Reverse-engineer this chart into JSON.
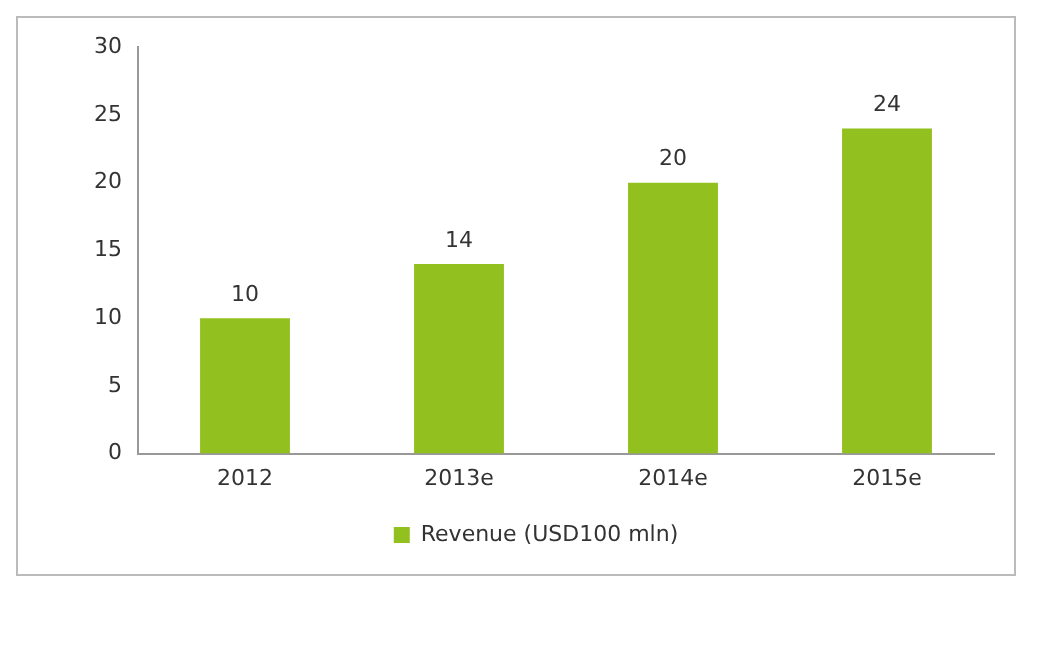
{
  "chart_data": {
    "type": "bar",
    "categories": [
      "2012",
      "2013e",
      "2014e",
      "2015e"
    ],
    "series": [
      {
        "name": "Revenue (USD100 mln)",
        "color": "#92c01f",
        "values": [
          10,
          14,
          20,
          24
        ]
      }
    ],
    "ylim": [
      0,
      30
    ],
    "yticks": [
      0,
      5,
      10,
      15,
      20,
      25,
      30
    ],
    "grid": false,
    "legend": "bottom",
    "data_labels": true
  }
}
